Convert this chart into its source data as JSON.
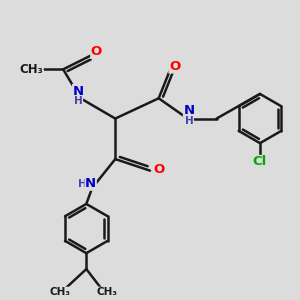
{
  "bg_color": "#dcdcdc",
  "bond_color": "#1a1a1a",
  "bond_width": 1.8,
  "atom_colors": {
    "O": "#ff0000",
    "N": "#0000cc",
    "Cl": "#00aa00",
    "C": "#1a1a1a",
    "H": "#4444aa"
  },
  "font_size": 8.5,
  "fig_size": [
    3.0,
    3.0
  ],
  "dpi": 100,
  "xlim": [
    0,
    10
  ],
  "ylim": [
    0,
    10
  ]
}
